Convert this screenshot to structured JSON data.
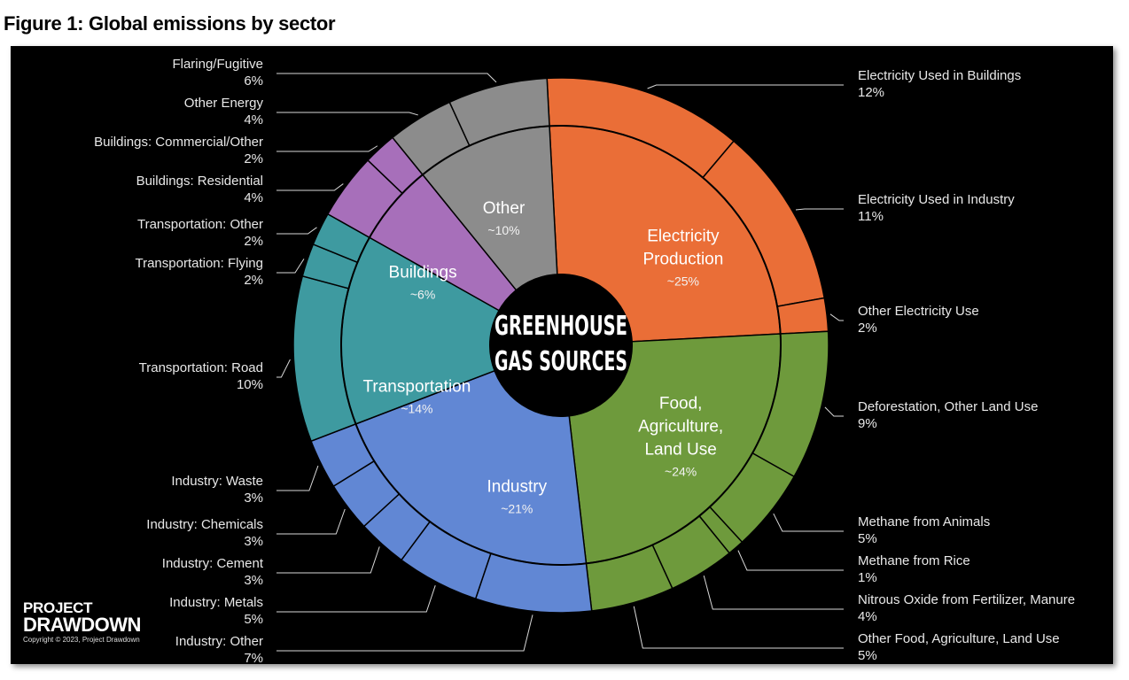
{
  "figure_title": "Figure 1: Global emissions by sector",
  "center_title": [
    "GREENHOUSE",
    "GAS SOURCES"
  ],
  "brand": {
    "line1": "PROJECT",
    "line2": "DRAWDOWN",
    "copyright": "Copyright © 2023, Project Drawdown"
  },
  "chart_data": {
    "type": "sunburst",
    "title": "GREENHOUSE GAS SOURCES",
    "sectors": [
      {
        "name": "Electricity Production",
        "share_label": "~25%",
        "color": "#ea6e37",
        "subsectors": [
          {
            "name": "Electricity Used in Buildings",
            "label": "12%",
            "value": 12
          },
          {
            "name": "Electricity Used in Industry",
            "label": "11%",
            "value": 11
          },
          {
            "name": "Other Electricity Use",
            "label": "2%",
            "value": 2
          }
        ]
      },
      {
        "name": "Food, Agriculture, Land Use",
        "share_label": "~24%",
        "color": "#6e9a3c",
        "subsectors": [
          {
            "name": "Deforestation, Other Land Use",
            "label": "9%",
            "value": 9
          },
          {
            "name": "Methane from Animals",
            "label": "5%",
            "value": 5
          },
          {
            "name": "Methane from Rice",
            "label": "1%",
            "value": 1
          },
          {
            "name": "Nitrous Oxide from Fertilizer, Manure",
            "label": "4%",
            "value": 4
          },
          {
            "name": "Other Food, Agriculture, Land Use",
            "label": "5%",
            "value": 5
          }
        ]
      },
      {
        "name": "Industry",
        "share_label": "~21%",
        "color": "#6187d4",
        "subsectors": [
          {
            "name": "Industry: Other",
            "label": "7%",
            "value": 7
          },
          {
            "name": "Industry: Metals",
            "label": "5%",
            "value": 5
          },
          {
            "name": "Industry: Cement",
            "label": "3%",
            "value": 3
          },
          {
            "name": "Industry: Chemicals",
            "label": "3%",
            "value": 3
          },
          {
            "name": "Industry: Waste",
            "label": "3%",
            "value": 3
          }
        ]
      },
      {
        "name": "Transportation",
        "share_label": "~14%",
        "color": "#3e9aa0",
        "subsectors": [
          {
            "name": "Transportation: Road",
            "label": "10%",
            "value": 10
          },
          {
            "name": "Transportation: Flying",
            "label": "2%",
            "value": 2
          },
          {
            "name": "Transportation: Other",
            "label": "2%",
            "value": 2
          }
        ]
      },
      {
        "name": "Buildings",
        "share_label": "~6%",
        "color": "#a76fba",
        "subsectors": [
          {
            "name": "Buildings: Residential",
            "label": "4%",
            "value": 4
          },
          {
            "name": "Buildings: Commercial/Other",
            "label": "2%",
            "value": 2
          }
        ]
      },
      {
        "name": "Other",
        "share_label": "~10%",
        "color": "#8c8c8c",
        "subsectors": [
          {
            "name": "Other Energy",
            "label": "4%",
            "value": 4
          },
          {
            "name": "Flaring/Fugitive",
            "label": "6%",
            "value": 6
          }
        ]
      }
    ]
  }
}
